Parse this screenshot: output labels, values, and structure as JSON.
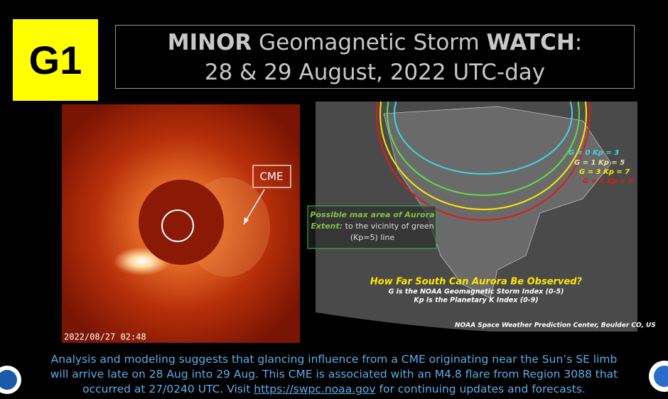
{
  "badge": "G1",
  "title": {
    "line1": {
      "bold1": "MINOR",
      "middle": " Geomagnetic Storm ",
      "bold2": "WATCH",
      "end": ":"
    },
    "line2": "28 & 29 August, 2022 UTC-day"
  },
  "coronagraph": {
    "label": "CME",
    "timestamp": "2022/08/27  02:48"
  },
  "map": {
    "annotation": {
      "emphasis": "Possible max area of Aurora Extent:",
      "rest": "to the vicinity of green (Kp=5) line"
    },
    "legend": [
      "G = 0  Kp = 3",
      "G = 1  Kp = 5",
      "G = 3  Kp = 7",
      "G = 5  Kp = 9"
    ],
    "heading": "How Far South Can Aurora Be Observed?",
    "notes": [
      "G is the NOAA Geomagnetic Storm Index (0-5)",
      "Kp is the Planetary K Index (0-9)"
    ],
    "credit": "NOAA Space Weather Prediction Center, Boulder CO, US"
  },
  "footer": {
    "text": "Analysis and modeling suggests that glancing influence from a CME originating near the Sun’s SE limb will arrive late on 28 Aug into 29 Aug. This CME is associated with an M4.8 flare from Region 3088 that occurred at 27/0240 UTC. Visit ",
    "link": "https://swpc.noaa.gov",
    "after": " for continuing updates and forecasts."
  }
}
